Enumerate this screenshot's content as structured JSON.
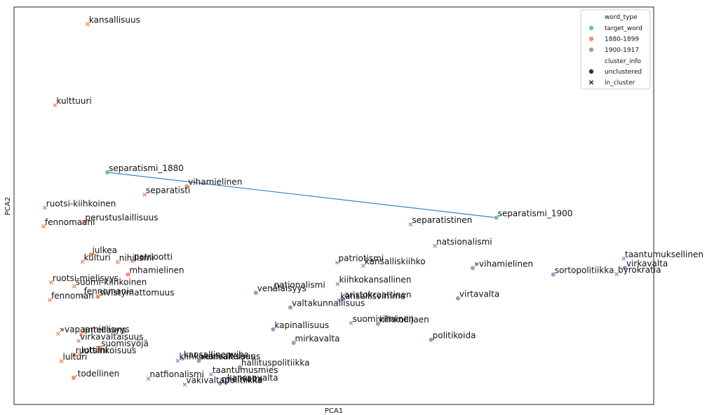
{
  "chart_data": {
    "type": "scatter",
    "xlabel": "PCA1",
    "ylabel": "PCA2",
    "xlim": [
      0,
      1000
    ],
    "ylim": [
      -1000,
      0
    ],
    "grid": false,
    "legend": {
      "placement": "top-right",
      "hue_title": "word_type",
      "style_title": "cluster_info",
      "hue_entries": [
        {
          "label": "target_word",
          "color": "#66c2a5"
        },
        {
          "label": "1880-1899",
          "color": "#fc8d62"
        },
        {
          "label": "1900-1917",
          "color": "#8da0cb"
        }
      ],
      "style_entries": [
        {
          "label": "unclustered",
          "marker": "circle"
        },
        {
          "label": "in_cluster",
          "marker": "x"
        }
      ]
    },
    "line": {
      "from": "separatismi_1880",
      "to": "separatismi_1900",
      "color": "#3b82c4"
    },
    "points": [
      {
        "label": "kansallisuus",
        "x": 115,
        "y": -43,
        "type": "1880-1899",
        "cluster": "in_cluster"
      },
      {
        "label": "kulttuuri",
        "x": 64,
        "y": -247,
        "type": "1880-1899",
        "cluster": "in_cluster"
      },
      {
        "label": "separatismi_1880",
        "x": 146,
        "y": -416,
        "type": "target_word",
        "cluster": "unclustered"
      },
      {
        "label": "vihamielinen",
        "x": 270,
        "y": -451,
        "type": "1880-1899",
        "cluster": "unclustered"
      },
      {
        "label": "separatisti",
        "x": 204,
        "y": -472,
        "type": "1880-1899",
        "cluster": "in_cluster"
      },
      {
        "label": "ruotsi-kiihkoinen",
        "x": 48,
        "y": -505,
        "type": "1880-1899",
        "cluster": "in_cluster"
      },
      {
        "label": "perustuslaillisuus",
        "x": 109,
        "y": -541,
        "type": "1880-1899",
        "cluster": "in_cluster"
      },
      {
        "label": "fennomaani",
        "x": 46,
        "y": -552,
        "type": "1880-1899",
        "cluster": "in_cluster"
      },
      {
        "label": "julkea",
        "x": 120,
        "y": -623,
        "type": "1880-1899",
        "cluster": "unclustered"
      },
      {
        "label": "kulturi",
        "x": 107,
        "y": -641,
        "type": "1880-1899",
        "cluster": "in_cluster"
      },
      {
        "label": "nihilismi",
        "x": 162,
        "y": -642,
        "type": "1880-1899",
        "cluster": "in_cluster"
      },
      {
        "label": "patriootti",
        "x": 185,
        "y": -639,
        "type": "1880-1899",
        "cluster": "in_cluster"
      },
      {
        "label": "mhamielinen",
        "x": 178,
        "y": -673,
        "type": "1880-1899",
        "cluster": "unclustered"
      },
      {
        "label": "ruotsi-mielisyys",
        "x": 58,
        "y": -693,
        "type": "1880-1899",
        "cluster": "in_cluster"
      },
      {
        "label": "suomi-kiihkoinen",
        "x": 94,
        "y": -703,
        "type": "1880-1899",
        "cluster": "in_cluster"
      },
      {
        "label": "fennomania",
        "x": 107,
        "y": -726,
        "type": "1880-1899",
        "cluster": "in_cluster"
      },
      {
        "label": "sivistymattomuus",
        "x": 131,
        "y": -729,
        "type": "1880-1899",
        "cluster": "unclustered"
      },
      {
        "label": "fennoman",
        "x": 56,
        "y": -737,
        "type": "1880-1899",
        "cluster": "in_cluster"
      },
      {
        "label": "»vapaamielisyys",
        "x": 69,
        "y": -822,
        "type": "1880-1899",
        "cluster": "in_cluster"
      },
      {
        "label": "antellaans",
        "x": 105,
        "y": -823,
        "type": "1880-1899",
        "cluster": "in_cluster"
      },
      {
        "label": "virkavaltaisuus",
        "x": 101,
        "y": -840,
        "type": "1880-1899",
        "cluster": "in_cluster"
      },
      {
        "label": "suomisyöjä",
        "x": 134,
        "y": -857,
        "type": "1880-1899",
        "cluster": "unclustered"
      },
      {
        "label": "ruotsinkoisuus",
        "x": 94,
        "y": -875,
        "type": "1880-1899",
        "cluster": "in_cluster"
      },
      {
        "label": "luttiini",
        "x": 103,
        "y": -874,
        "type": "1880-1899",
        "cluster": "in_cluster"
      },
      {
        "label": "lulturi",
        "x": 74,
        "y": -891,
        "type": "1880-1899",
        "cluster": "in_cluster"
      },
      {
        "label": ".todellinen",
        "x": 93,
        "y": -933,
        "type": "1880-1899",
        "cluster": "unclustered"
      },
      {
        "label": "separatismi_1900",
        "x": 754,
        "y": -530,
        "type": "target_word",
        "cluster": "unclustered"
      },
      {
        "label": "separatistinen",
        "x": 620,
        "y": -547,
        "type": "1900-1917",
        "cluster": "in_cluster"
      },
      {
        "label": "natsionalismi",
        "x": 658,
        "y": -601,
        "type": "1900-1917",
        "cluster": "in_cluster"
      },
      {
        "label": "taantumuksellinen",
        "x": 953,
        "y": -633,
        "type": "1900-1917",
        "cluster": "in_cluster"
      },
      {
        "label": "virkavalta",
        "x": 955,
        "y": -656,
        "type": "1900-1917",
        "cluster": "unclustered"
      },
      {
        "label": "»vihamielinen",
        "x": 717,
        "y": -657,
        "type": "1900-1917",
        "cluster": "unclustered"
      },
      {
        "label": "sortopolitiikka",
        "x": 843,
        "y": -673,
        "type": "1900-1917",
        "cluster": "unclustered"
      },
      {
        "label": "byrokratia",
        "x": 942,
        "y": -672,
        "type": "1900-1917",
        "cluster": "in_cluster"
      },
      {
        "label": "patriotismi",
        "x": 505,
        "y": -643,
        "type": "1900-1917",
        "cluster": "in_cluster"
      },
      {
        "label": "kansalliskiihko",
        "x": 546,
        "y": -651,
        "type": "1900-1917",
        "cluster": "in_cluster"
      },
      {
        "label": "kiihkokansallinen",
        "x": 506,
        "y": -697,
        "type": "1900-1917",
        "cluster": "in_cluster"
      },
      {
        "label": "nationalismi",
        "x": 404,
        "y": -710,
        "type": "1900-1917",
        "cluster": "in_cluster"
      },
      {
        "label": "venäläisyys",
        "x": 378,
        "y": -719,
        "type": "1900-1917",
        "cluster": "unclustered"
      },
      {
        "label": "kansallisvimma",
        "x": 508,
        "y": -738,
        "type": "1900-1917",
        "cluster": "in_cluster"
      },
      {
        "label": "aristokraattinen",
        "x": 514,
        "y": -735,
        "type": "1900-1917",
        "cluster": "unclustered"
      },
      {
        "label": "virtavalta",
        "x": 694,
        "y": -733,
        "type": "1900-1917",
        "cluster": "unclustered"
      },
      {
        "label": "valtakunnallisuus",
        "x": 432,
        "y": -756,
        "type": "1900-1917",
        "cluster": "unclustered"
      },
      {
        "label": "kapinallisuus",
        "x": 405,
        "y": -811,
        "type": "1900-1917",
        "cluster": "unclustered"
      },
      {
        "label": "suomivihainen",
        "x": 527,
        "y": -795,
        "type": "1900-1917",
        "cluster": "in_cluster"
      },
      {
        "label": "kiihkoilijaen",
        "x": 569,
        "y": -797,
        "type": "1900-1917",
        "cluster": "unclustered"
      },
      {
        "label": "politikoida",
        "x": 652,
        "y": -837,
        "type": "1900-1917",
        "cluster": "unclustered"
      },
      {
        "label": "mirkavalta",
        "x": 437,
        "y": -845,
        "type": "1900-1917",
        "cluster": "unclustered"
      },
      {
        "label": "kansallinenviha",
        "x": 263,
        "y": -885,
        "type": "1900-1917",
        "cluster": "in_cluster"
      },
      {
        "label": "kiihkokansallisuus",
        "x": 256,
        "y": -890,
        "type": "1900-1917",
        "cluster": "in_cluster"
      },
      {
        "label": "vakivaltaisuus",
        "x": 289,
        "y": -890,
        "type": "1900-1917",
        "cluster": "unclustered"
      },
      {
        "label": "hallituspolitiikka",
        "x": 353,
        "y": -906,
        "type": "1900-1917",
        "cluster": "unclustered"
      },
      {
        "label": "taantumusmies",
        "x": 308,
        "y": -924,
        "type": "1900-1917",
        "cluster": "in_cluster"
      },
      {
        "label": "natfionalismi",
        "x": 210,
        "y": -935,
        "type": "1900-1917",
        "cluster": "in_cluster"
      },
      {
        "label": "vakivaltapolitiikka",
        "x": 267,
        "y": -950,
        "type": "1900-1917",
        "cluster": "in_cluster"
      },
      {
        "label": "kansanvalta",
        "x": 331,
        "y": -944,
        "type": "1900-1917",
        "cluster": "unclustered"
      },
      {
        "label": "mielivalta",
        "x": 322,
        "y": -947,
        "type": "1900-1917",
        "cluster": "unclustered"
      }
    ]
  }
}
